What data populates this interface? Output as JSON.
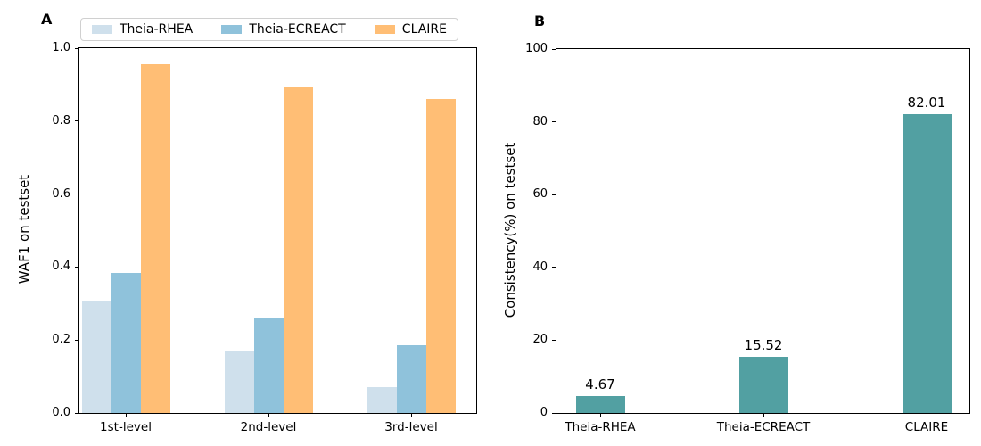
{
  "panel_a": {
    "label": "A",
    "ylabel": "WAF1 on testset"
  },
  "panel_b": {
    "label": "B",
    "ylabel": "Consistency(%) on testset",
    "bar_color": "#52a0a2"
  },
  "chart_data": [
    {
      "type": "bar",
      "panel": "A",
      "ylabel": "WAF1 on testset",
      "xlabel": "",
      "categories": [
        "1st-level",
        "2nd-level",
        "3rd-level"
      ],
      "series": [
        {
          "name": "Theia-RHEA",
          "color": "#cfe0ec",
          "values": [
            0.305,
            0.172,
            0.072
          ]
        },
        {
          "name": "Theia-ECREACT",
          "color": "#8fc2db",
          "values": [
            0.385,
            0.258,
            0.185
          ]
        },
        {
          "name": "CLAIRE",
          "color": "#ffbe75",
          "values": [
            0.955,
            0.895,
            0.86
          ]
        }
      ],
      "ylim": [
        0,
        1.0
      ],
      "yticks": [
        0.0,
        0.2,
        0.4,
        0.6,
        0.8,
        1.0
      ],
      "ytick_labels": [
        "0.0",
        "0.2",
        "0.4",
        "0.6",
        "0.8",
        "1.0"
      ],
      "grid": false,
      "legend_position": "above-top-left"
    },
    {
      "type": "bar",
      "panel": "B",
      "ylabel": "Consistency(%) on testset",
      "xlabel": "",
      "categories": [
        "Theia-RHEA",
        "Theia-ECREACT",
        "CLAIRE"
      ],
      "values": [
        4.67,
        15.52,
        82.01
      ],
      "value_labels": [
        "4.67",
        "15.52",
        "82.01"
      ],
      "bar_color": "#52a0a2",
      "ylim": [
        0,
        100
      ],
      "yticks": [
        0,
        20,
        40,
        60,
        80,
        100
      ],
      "ytick_labels": [
        "0",
        "20",
        "40",
        "60",
        "80",
        "100"
      ],
      "grid": false,
      "legend_position": "none"
    }
  ]
}
